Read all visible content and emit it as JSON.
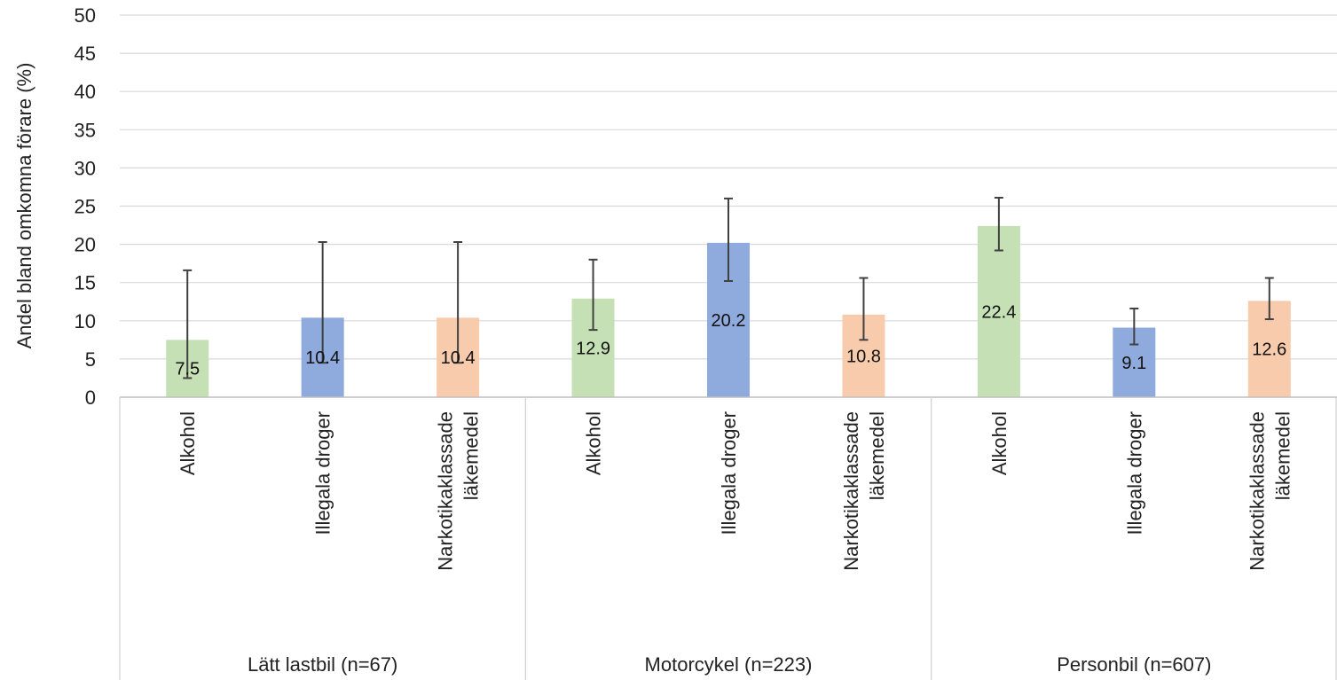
{
  "chart_data": {
    "type": "bar",
    "title": "",
    "xlabel": "",
    "ylabel": "Andel bland omkomna förare (%)",
    "ylim": [
      0,
      50
    ],
    "yticks": [
      0,
      5,
      10,
      15,
      20,
      25,
      30,
      35,
      40,
      45,
      50
    ],
    "grid": true,
    "legend": "none",
    "category_labels": [
      "Alkohol",
      "Illegala droger",
      "Narkotikaklassade läkemedel"
    ],
    "colors": {
      "Alkohol": "#c5e0b4",
      "Illegala droger": "#8faadc",
      "Narkotikaklassade läkemedel": "#f8cbad"
    },
    "groups": [
      {
        "name": "Lätt lastbil (n=67)",
        "bars": [
          {
            "category": "Alkohol",
            "value": 7.5,
            "label": "7.5",
            "err_low": 2.5,
            "err_high": 16.6
          },
          {
            "category": "Illegala droger",
            "value": 10.4,
            "label": "10.4",
            "err_low": 4.5,
            "err_high": 20.3
          },
          {
            "category": "Narkotikaklassade läkemedel",
            "value": 10.4,
            "label": "10.4",
            "err_low": 4.5,
            "err_high": 20.3
          }
        ]
      },
      {
        "name": "Motorcykel (n=223)",
        "bars": [
          {
            "category": "Alkohol",
            "value": 12.9,
            "label": "12.9",
            "err_low": 8.8,
            "err_high": 18.0
          },
          {
            "category": "Illegala droger",
            "value": 20.2,
            "label": "20.2",
            "err_low": 15.2,
            "err_high": 26.0
          },
          {
            "category": "Narkotikaklassade läkemedel",
            "value": 10.8,
            "label": "10.8",
            "err_low": 7.5,
            "err_high": 15.6
          }
        ]
      },
      {
        "name": "Personbil (n=607)",
        "bars": [
          {
            "category": "Alkohol",
            "value": 22.4,
            "label": "22.4",
            "err_low": 19.2,
            "err_high": 26.1
          },
          {
            "category": "Illegala droger",
            "value": 9.1,
            "label": "9.1",
            "err_low": 6.9,
            "err_high": 11.6
          },
          {
            "category": "Narkotikaklassade läkemedel",
            "value": 12.6,
            "label": "12.6",
            "err_low": 10.2,
            "err_high": 15.6
          }
        ]
      }
    ]
  }
}
